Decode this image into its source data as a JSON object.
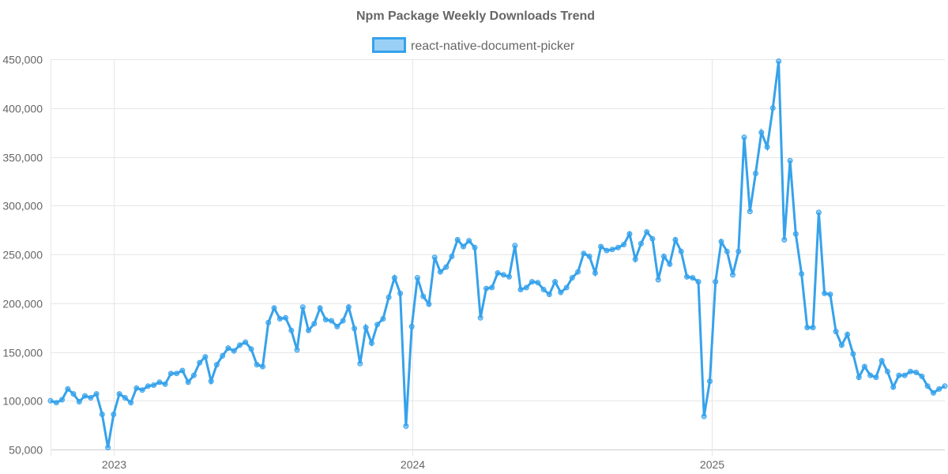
{
  "chart_data": {
    "type": "line",
    "title": "Npm Package Weekly Downloads Trend",
    "xlabel": "",
    "ylabel": "",
    "ylim": [
      50000,
      450000
    ],
    "yticks": [
      "50,000",
      "100,000",
      "150,000",
      "200,000",
      "250,000",
      "300,000",
      "350,000",
      "400,000",
      "450,000"
    ],
    "ytick_values": [
      50000,
      100000,
      150000,
      200000,
      250000,
      300000,
      350000,
      400000,
      450000
    ],
    "xticks": [
      {
        "label": "2023",
        "week_index": 11
      },
      {
        "label": "2024",
        "week_index": 63.1
      },
      {
        "label": "2025",
        "week_index": 115.3
      }
    ],
    "grid": true,
    "legend_position": "top-center",
    "series": [
      {
        "name": "react-native-document-picker",
        "color": "#36a2eb",
        "values": [
          100000,
          98000,
          101000,
          112000,
          107000,
          99000,
          105000,
          103000,
          107000,
          86000,
          52000,
          86000,
          107000,
          103000,
          98000,
          113000,
          111000,
          115000,
          116000,
          119000,
          117000,
          128000,
          128000,
          131000,
          119000,
          126000,
          139000,
          145000,
          120000,
          137000,
          146000,
          154000,
          151000,
          157000,
          160000,
          153000,
          137000,
          135000,
          180000,
          195000,
          184000,
          185000,
          172000,
          152000,
          196000,
          172000,
          179000,
          195000,
          183000,
          182000,
          176000,
          182000,
          196000,
          174000,
          138000,
          175000,
          159000,
          178000,
          184000,
          206000,
          226000,
          210000,
          74000,
          176000,
          226000,
          207000,
          199000,
          247000,
          232000,
          237000,
          248000,
          265000,
          258000,
          264000,
          257000,
          185000,
          215000,
          216000,
          231000,
          229000,
          227000,
          259000,
          214000,
          216000,
          222000,
          221000,
          214000,
          209000,
          222000,
          211000,
          216000,
          226000,
          232000,
          251000,
          248000,
          231000,
          258000,
          254000,
          255000,
          257000,
          260000,
          271000,
          245000,
          261000,
          273000,
          266000,
          224000,
          248000,
          240000,
          265000,
          253000,
          227000,
          226000,
          222000,
          84000,
          120000,
          222000,
          263000,
          253000,
          229000,
          253000,
          370000,
          294000,
          333000,
          375000,
          360000,
          400000,
          448000,
          265000,
          346000,
          271000,
          230000,
          175000,
          175000,
          293000,
          210000,
          209000,
          171000,
          157000,
          168000,
          148000,
          124000,
          135000,
          126000,
          124000,
          141000,
          130000,
          114000,
          126000,
          126000,
          130000,
          129000,
          125000,
          115000,
          108000,
          112000,
          115000
        ]
      }
    ]
  }
}
